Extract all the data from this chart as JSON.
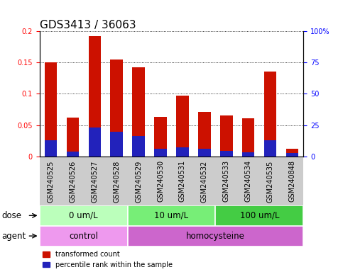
{
  "title": "GDS3413 / 36063",
  "samples": [
    "GSM240525",
    "GSM240526",
    "GSM240527",
    "GSM240528",
    "GSM240529",
    "GSM240530",
    "GSM240531",
    "GSM240532",
    "GSM240533",
    "GSM240534",
    "GSM240535",
    "GSM240848"
  ],
  "red_values": [
    0.15,
    0.062,
    0.192,
    0.155,
    0.143,
    0.063,
    0.097,
    0.071,
    0.065,
    0.061,
    0.136,
    0.012
  ],
  "blue_values": [
    0.026,
    0.008,
    0.046,
    0.039,
    0.033,
    0.012,
    0.014,
    0.012,
    0.009,
    0.007,
    0.026,
    0.005
  ],
  "ylim_left": [
    0,
    0.2
  ],
  "ylim_right": [
    0,
    100
  ],
  "yticks_left": [
    0,
    0.05,
    0.1,
    0.15,
    0.2
  ],
  "yticks_right": [
    0,
    25,
    50,
    75,
    100
  ],
  "ytick_labels_left": [
    "0",
    "0.05",
    "0.1",
    "0.15",
    "0.2"
  ],
  "ytick_labels_right": [
    "0",
    "25",
    "50",
    "75",
    "100%"
  ],
  "dose_groups": [
    {
      "label": "0 um/L",
      "start": 0,
      "end": 4,
      "color": "#bbffbb"
    },
    {
      "label": "10 um/L",
      "start": 4,
      "end": 8,
      "color": "#77ee77"
    },
    {
      "label": "100 um/L",
      "start": 8,
      "end": 12,
      "color": "#44cc44"
    }
  ],
  "agent_groups": [
    {
      "label": "control",
      "start": 0,
      "end": 4,
      "color": "#ee99ee"
    },
    {
      "label": "homocysteine",
      "start": 4,
      "end": 12,
      "color": "#cc66cc"
    }
  ],
  "bar_color_red": "#cc1100",
  "bar_color_blue": "#2222bb",
  "bar_width": 0.55,
  "legend_red": "transformed count",
  "legend_blue": "percentile rank within the sample",
  "dose_label": "dose",
  "agent_label": "agent",
  "title_fontsize": 11,
  "tick_fontsize": 7,
  "label_fontsize": 8.5,
  "row_label_fontsize": 8.5,
  "xtick_bg": "#cccccc"
}
